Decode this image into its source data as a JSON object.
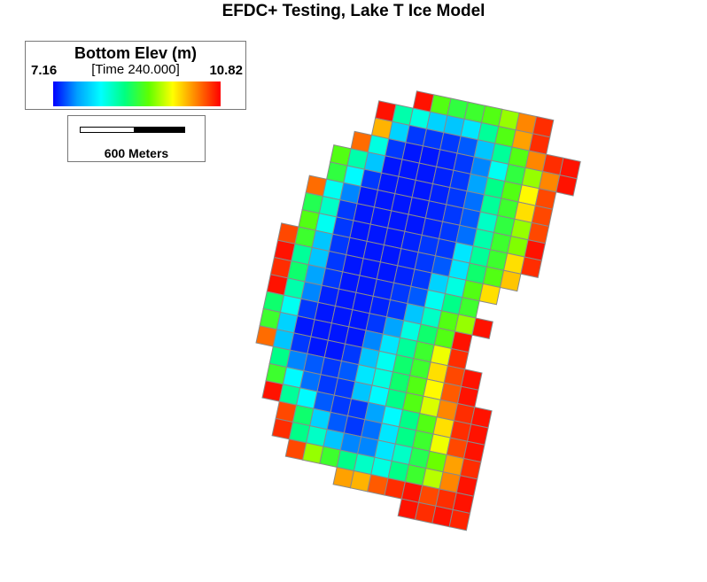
{
  "title": "EFDC+ Testing, Lake T Ice Model",
  "legend": {
    "title": "Bottom Elev (m)",
    "time": "[Time 240.000]",
    "min_label": "7.16",
    "max_label": "10.82",
    "min": 7.16,
    "max": 10.82,
    "colormap": [
      "#0000ff",
      "#00a0ff",
      "#00ffff",
      "#00ff80",
      "#60ff00",
      "#ffff00",
      "#ff8000",
      "#ff0000"
    ]
  },
  "scale_bar": {
    "label": "600 Meters"
  },
  "grid": {
    "cell_line_color": "#8a8a8a",
    "rows": [
      {
        "j": 26,
        "i0": 9,
        "v": [
          0.98,
          0.55,
          0.5,
          0.52,
          0.55,
          0.62,
          0.85,
          0.95
        ]
      },
      {
        "j": 25,
        "i0": 7,
        "v": [
          0.98,
          0.38,
          0.32,
          0.22,
          0.2,
          0.25,
          0.4,
          0.55,
          0.82,
          0.95
        ]
      },
      {
        "j": 24,
        "i0": 7,
        "v": [
          0.8,
          0.22,
          0.05,
          0.05,
          0.05,
          0.08,
          0.2,
          0.4,
          0.55,
          0.85,
          0.95,
          0.98
        ]
      },
      {
        "j": 23,
        "i0": 6,
        "v": [
          0.88,
          0.32,
          0.05,
          0.02,
          0.02,
          0.03,
          0.05,
          0.12,
          0.3,
          0.5,
          0.62,
          0.85,
          0.98
        ]
      },
      {
        "j": 22,
        "i0": 5,
        "v": [
          0.55,
          0.38,
          0.2,
          0.02,
          0.02,
          0.02,
          0.03,
          0.05,
          0.15,
          0.42,
          0.55,
          0.72,
          0.92
        ]
      },
      {
        "j": 21,
        "i0": 5,
        "v": [
          0.5,
          0.28,
          0.05,
          0.02,
          0.02,
          0.02,
          0.03,
          0.05,
          0.1,
          0.4,
          0.52,
          0.75,
          0.92
        ]
      },
      {
        "j": 20,
        "i0": 4,
        "v": [
          0.88,
          0.3,
          0.12,
          0.02,
          0.02,
          0.02,
          0.02,
          0.03,
          0.05,
          0.08,
          0.35,
          0.5,
          0.62,
          0.92
        ]
      },
      {
        "j": 19,
        "i0": 4,
        "v": [
          0.48,
          0.35,
          0.05,
          0.02,
          0.02,
          0.02,
          0.02,
          0.03,
          0.05,
          0.1,
          0.38,
          0.52,
          0.6,
          0.98
        ]
      },
      {
        "j": 18,
        "i0": 4,
        "v": [
          0.55,
          0.3,
          0.05,
          0.02,
          0.02,
          0.02,
          0.03,
          0.05,
          0.05,
          0.25,
          0.4,
          0.52,
          0.75,
          0.95
        ]
      },
      {
        "j": 17,
        "i0": 3,
        "v": [
          0.92,
          0.52,
          0.2,
          0.05,
          0.02,
          0.02,
          0.02,
          0.03,
          0.05,
          0.08,
          0.25,
          0.45,
          0.55,
          0.78
        ]
      },
      {
        "j": 16,
        "i0": 3,
        "v": [
          0.98,
          0.4,
          0.2,
          0.05,
          0.02,
          0.02,
          0.02,
          0.03,
          0.05,
          0.22,
          0.32,
          0.55,
          0.75
        ]
      },
      {
        "j": 15,
        "i0": 3,
        "v": [
          0.95,
          0.45,
          0.15,
          0.05,
          0.02,
          0.02,
          0.03,
          0.05,
          0.08,
          0.3,
          0.42,
          0.52
        ]
      },
      {
        "j": 14,
        "i0": 3,
        "v": [
          0.98,
          0.38,
          0.12,
          0.03,
          0.02,
          0.02,
          0.03,
          0.05,
          0.2,
          0.35,
          0.55,
          0.62,
          0.98
        ]
      },
      {
        "j": 13,
        "i0": 3,
        "v": [
          0.45,
          0.3,
          0.05,
          0.02,
          0.02,
          0.02,
          0.05,
          0.15,
          0.32,
          0.45,
          0.55,
          0.98
        ]
      },
      {
        "j": 12,
        "i0": 3,
        "v": [
          0.52,
          0.22,
          0.02,
          0.02,
          0.02,
          0.02,
          0.12,
          0.25,
          0.4,
          0.52,
          0.7,
          0.95
        ]
      },
      {
        "j": 11,
        "i0": 3,
        "v": [
          0.88,
          0.2,
          0.05,
          0.02,
          0.02,
          0.05,
          0.2,
          0.3,
          0.45,
          0.52,
          0.75,
          0.92,
          0.98
        ]
      },
      {
        "j": 10,
        "i0": 4,
        "v": [
          0.42,
          0.12,
          0.08,
          0.05,
          0.08,
          0.25,
          0.32,
          0.45,
          0.55,
          0.72,
          0.9,
          0.98
        ]
      },
      {
        "j": 9,
        "i0": 4,
        "v": [
          0.52,
          0.28,
          0.1,
          0.05,
          0.05,
          0.2,
          0.28,
          0.42,
          0.55,
          0.68,
          0.85,
          0.95,
          0.98
        ]
      },
      {
        "j": 8,
        "i0": 4,
        "v": [
          0.98,
          0.4,
          0.28,
          0.08,
          0.05,
          0.05,
          0.15,
          0.28,
          0.42,
          0.55,
          0.75,
          0.95,
          0.98
        ]
      },
      {
        "j": 7,
        "i0": 5,
        "v": [
          0.92,
          0.45,
          0.22,
          0.08,
          0.05,
          0.1,
          0.25,
          0.42,
          0.52,
          0.7,
          0.92,
          0.98
        ]
      },
      {
        "j": 6,
        "i0": 5,
        "v": [
          0.95,
          0.42,
          0.35,
          0.2,
          0.12,
          0.12,
          0.25,
          0.35,
          0.48,
          0.58,
          0.82,
          0.95
        ]
      },
      {
        "j": 5,
        "i0": 6,
        "v": [
          0.92,
          0.62,
          0.52,
          0.42,
          0.35,
          0.32,
          0.42,
          0.52,
          0.65,
          0.85,
          0.98
        ]
      },
      {
        "j": 4,
        "i0": 9,
        "v": [
          0.82,
          0.8,
          0.9,
          0.95,
          0.98,
          0.92,
          0.95,
          0.98
        ]
      },
      {
        "j": 3,
        "i0": 13,
        "v": [
          0.98,
          0.95,
          0.98,
          0.96
        ]
      }
    ]
  }
}
